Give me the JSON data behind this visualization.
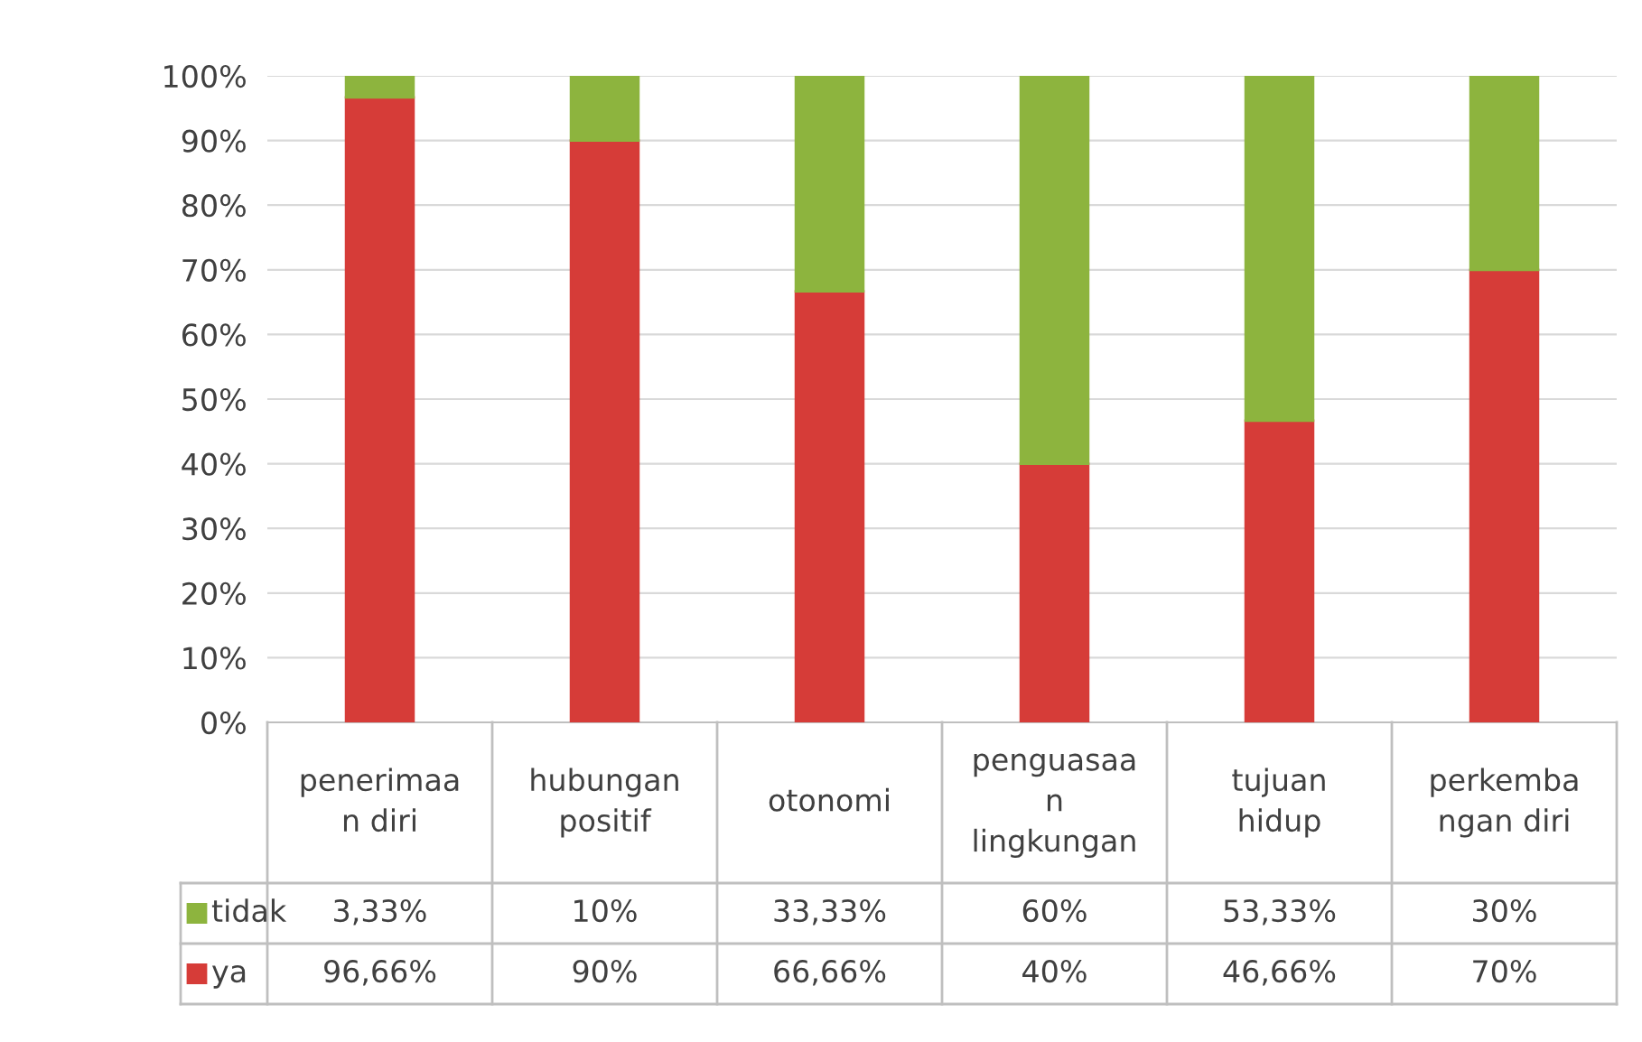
{
  "chart_data": {
    "type": "bar",
    "stacked": true,
    "categories": [
      "penerimaa\nn diri",
      "hubungan\npositif",
      "otonomi",
      "penguasaa\nn\nlingkungan",
      "tujuan\nhidup",
      "perkemba\nngan diri"
    ],
    "series": [
      {
        "name": "ya",
        "color": "#d63c38",
        "values": [
          96.66,
          90,
          66.66,
          40,
          46.66,
          70
        ],
        "value_labels": [
          "96,66%",
          "90%",
          "66,66%",
          "40%",
          "46,66%",
          "70%"
        ]
      },
      {
        "name": "tidak",
        "color": "#8db43e",
        "values": [
          3.33,
          10,
          33.33,
          60,
          53.33,
          30
        ],
        "value_labels": [
          "3,33%",
          "10%",
          "33,33%",
          "60%",
          "53,33%",
          "30%"
        ]
      }
    ],
    "ylim": [
      0,
      100
    ],
    "yticks": [
      {
        "value": 0,
        "label": "0%"
      },
      {
        "value": 10,
        "label": "10%"
      },
      {
        "value": 20,
        "label": "20%"
      },
      {
        "value": 30,
        "label": "30%"
      },
      {
        "value": 40,
        "label": "40%"
      },
      {
        "value": 50,
        "label": "50%"
      },
      {
        "value": 60,
        "label": "60%"
      },
      {
        "value": 70,
        "label": "70%"
      },
      {
        "value": 80,
        "label": "80%"
      },
      {
        "value": 90,
        "label": "90%"
      },
      {
        "value": 100,
        "label": "100%"
      }
    ],
    "grid": "y",
    "legend": "bottom left"
  }
}
